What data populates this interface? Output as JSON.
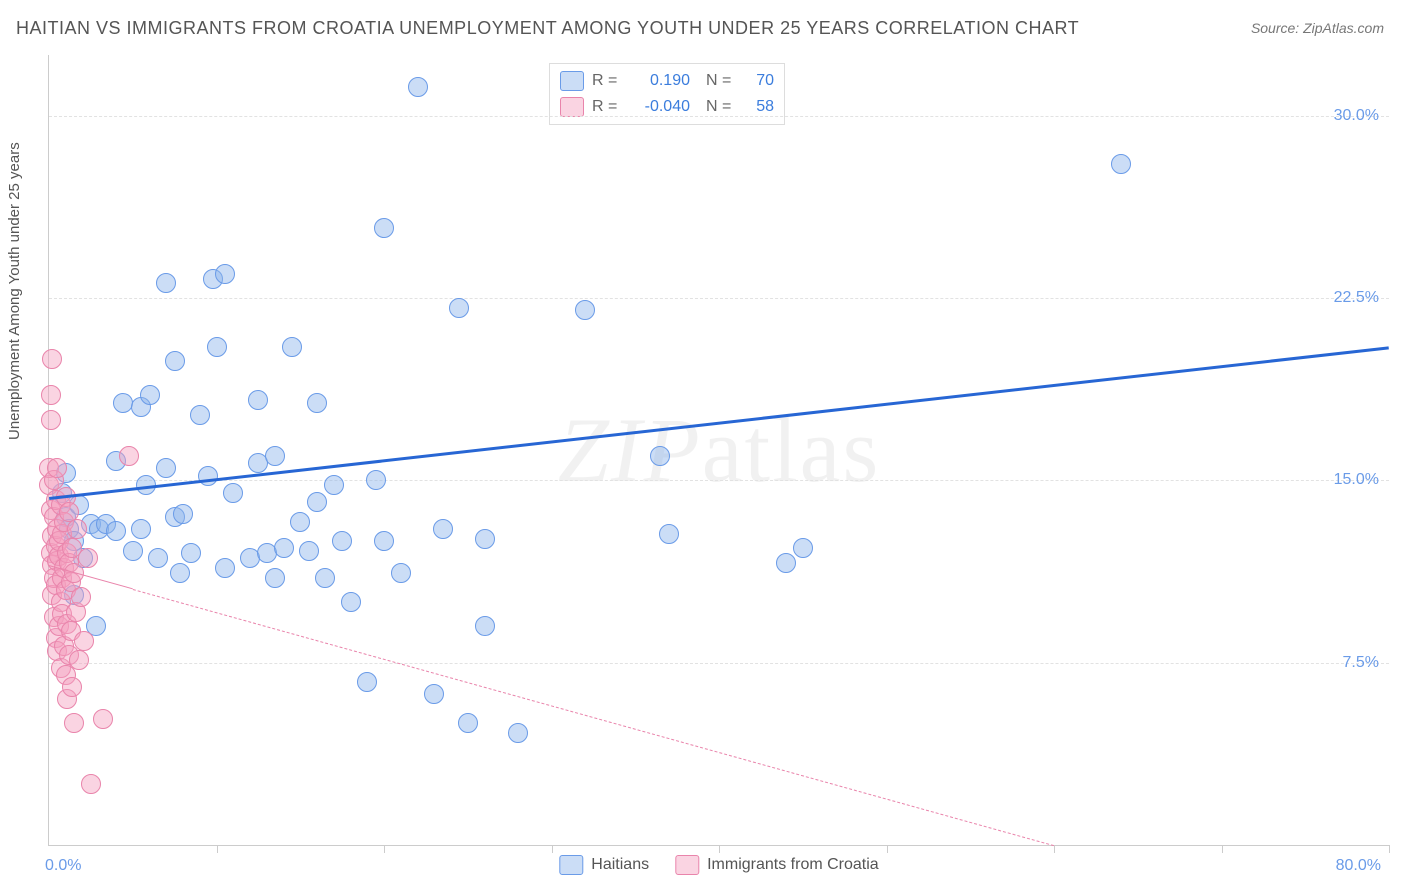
{
  "title": "HAITIAN VS IMMIGRANTS FROM CROATIA UNEMPLOYMENT AMONG YOUTH UNDER 25 YEARS CORRELATION CHART",
  "source": "Source: ZipAtlas.com",
  "watermark": "ZIPatlas",
  "chart": {
    "type": "scatter",
    "ylabel": "Unemployment Among Youth under 25 years",
    "xlim": [
      0,
      80
    ],
    "ylim": [
      0,
      32.5
    ],
    "yticks": [
      {
        "v": 7.5,
        "label": "7.5%"
      },
      {
        "v": 15.0,
        "label": "15.0%"
      },
      {
        "v": 22.5,
        "label": "22.5%"
      },
      {
        "v": 30.0,
        "label": "30.0%"
      }
    ],
    "xticks": [
      10,
      20,
      30,
      40,
      50,
      60,
      70,
      80
    ],
    "xaxis_min_label": "0.0%",
    "xaxis_max_label": "80.0%",
    "background_color": "#ffffff",
    "grid_color": "#e2e2e2",
    "axis_color": "#cccccc",
    "tick_label_color": "#6a9be8",
    "marker_radius": 9,
    "series": [
      {
        "name": "Haitians",
        "legend_label": "Haitians",
        "fill": "rgba(140,180,235,0.45)",
        "stroke": "#6a9be8",
        "R": "0.190",
        "N": "70",
        "trend": {
          "x1": 0,
          "y1": 14.3,
          "x2": 80,
          "y2": 20.5,
          "color": "#2766d4",
          "width": 3,
          "dash": ""
        },
        "points": [
          [
            0.8,
            14.5
          ],
          [
            1.0,
            15.3
          ],
          [
            1.0,
            13.5
          ],
          [
            1.2,
            13.0
          ],
          [
            1.5,
            12.5
          ],
          [
            1.5,
            10.3
          ],
          [
            1.8,
            14.0
          ],
          [
            2.0,
            11.8
          ],
          [
            2.5,
            13.2
          ],
          [
            2.8,
            9.0
          ],
          [
            3.0,
            13.0
          ],
          [
            3.4,
            13.2
          ],
          [
            4.0,
            15.8
          ],
          [
            4.0,
            12.9
          ],
          [
            4.4,
            18.2
          ],
          [
            5.0,
            12.1
          ],
          [
            5.5,
            18.0
          ],
          [
            5.5,
            13.0
          ],
          [
            5.8,
            14.8
          ],
          [
            6.0,
            18.5
          ],
          [
            6.5,
            11.8
          ],
          [
            7.0,
            23.1
          ],
          [
            7.0,
            15.5
          ],
          [
            7.5,
            19.9
          ],
          [
            7.5,
            13.5
          ],
          [
            7.8,
            11.2
          ],
          [
            8.0,
            13.6
          ],
          [
            8.5,
            12.0
          ],
          [
            9.0,
            17.7
          ],
          [
            9.5,
            15.2
          ],
          [
            9.8,
            23.3
          ],
          [
            10.0,
            20.5
          ],
          [
            10.5,
            11.4
          ],
          [
            10.5,
            23.5
          ],
          [
            11.0,
            14.5
          ],
          [
            12.0,
            11.8
          ],
          [
            12.5,
            15.7
          ],
          [
            12.5,
            18.3
          ],
          [
            13.0,
            12.0
          ],
          [
            13.5,
            16.0
          ],
          [
            13.5,
            11.0
          ],
          [
            14.0,
            12.2
          ],
          [
            14.5,
            20.5
          ],
          [
            15.0,
            13.3
          ],
          [
            15.5,
            12.1
          ],
          [
            16.0,
            18.2
          ],
          [
            16.0,
            14.1
          ],
          [
            16.5,
            11.0
          ],
          [
            17.0,
            14.8
          ],
          [
            17.5,
            12.5
          ],
          [
            18.0,
            10.0
          ],
          [
            19.0,
            6.7
          ],
          [
            19.5,
            15.0
          ],
          [
            20.0,
            25.4
          ],
          [
            20.0,
            12.5
          ],
          [
            21.0,
            11.2
          ],
          [
            22.0,
            31.2
          ],
          [
            23.0,
            6.2
          ],
          [
            23.5,
            13.0
          ],
          [
            24.5,
            22.1
          ],
          [
            25.0,
            5.0
          ],
          [
            26.0,
            9.0
          ],
          [
            26.0,
            12.6
          ],
          [
            28.0,
            4.6
          ],
          [
            32.0,
            22.0
          ],
          [
            36.5,
            16.0
          ],
          [
            37.0,
            12.8
          ],
          [
            44.0,
            11.6
          ],
          [
            45.0,
            12.2
          ],
          [
            64.0,
            28.0
          ]
        ]
      },
      {
        "name": "Immigrants from Croatia",
        "legend_label": "Immigrants from Croatia",
        "fill": "rgba(245,160,190,0.45)",
        "stroke": "#e984ab",
        "R": "-0.040",
        "N": "58",
        "trend": {
          "x1": 0,
          "y1": 11.5,
          "x2": 60,
          "y2": 0,
          "color": "#e984ab",
          "width": 1.5,
          "dash_after": 5
        },
        "points": [
          [
            0.0,
            14.8
          ],
          [
            0.0,
            15.5
          ],
          [
            0.1,
            13.8
          ],
          [
            0.1,
            17.5
          ],
          [
            0.1,
            12.0
          ],
          [
            0.1,
            18.5
          ],
          [
            0.2,
            20.0
          ],
          [
            0.2,
            12.7
          ],
          [
            0.2,
            11.5
          ],
          [
            0.2,
            10.3
          ],
          [
            0.3,
            15.0
          ],
          [
            0.3,
            13.5
          ],
          [
            0.3,
            9.4
          ],
          [
            0.3,
            11.0
          ],
          [
            0.4,
            12.3
          ],
          [
            0.4,
            14.2
          ],
          [
            0.4,
            8.5
          ],
          [
            0.4,
            10.7
          ],
          [
            0.5,
            13.0
          ],
          [
            0.5,
            11.7
          ],
          [
            0.5,
            15.5
          ],
          [
            0.5,
            8.0
          ],
          [
            0.6,
            11.9
          ],
          [
            0.6,
            9.0
          ],
          [
            0.6,
            12.5
          ],
          [
            0.7,
            14.0
          ],
          [
            0.7,
            10.0
          ],
          [
            0.7,
            7.3
          ],
          [
            0.8,
            11.0
          ],
          [
            0.8,
            12.8
          ],
          [
            0.8,
            9.5
          ],
          [
            0.9,
            13.3
          ],
          [
            0.9,
            8.2
          ],
          [
            0.9,
            11.4
          ],
          [
            1.0,
            14.3
          ],
          [
            1.0,
            7.0
          ],
          [
            1.0,
            10.5
          ],
          [
            1.1,
            12.0
          ],
          [
            1.1,
            6.0
          ],
          [
            1.1,
            9.1
          ],
          [
            1.2,
            11.6
          ],
          [
            1.2,
            13.7
          ],
          [
            1.2,
            7.8
          ],
          [
            1.3,
            10.8
          ],
          [
            1.3,
            8.8
          ],
          [
            1.4,
            12.2
          ],
          [
            1.4,
            6.5
          ],
          [
            1.5,
            11.2
          ],
          [
            1.5,
            5.0
          ],
          [
            1.6,
            9.6
          ],
          [
            1.7,
            13.0
          ],
          [
            1.8,
            7.6
          ],
          [
            1.9,
            10.2
          ],
          [
            2.1,
            8.4
          ],
          [
            2.3,
            11.8
          ],
          [
            2.5,
            2.5
          ],
          [
            3.2,
            5.2
          ],
          [
            4.8,
            16.0
          ]
        ]
      }
    ],
    "correlation_box": {
      "R_label": "R =",
      "N_label": "N ="
    },
    "bottom_legend": true
  }
}
